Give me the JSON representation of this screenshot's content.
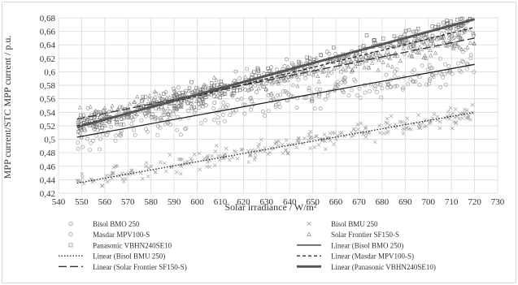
{
  "chart_data": {
    "type": "scatter",
    "xlabel": "Solar irradiance / W/m²",
    "ylabel": "MPP current/STC MPP current / p.u.",
    "xlim": [
      540,
      730
    ],
    "ylim": [
      0.42,
      0.68
    ],
    "xticks": [
      "540",
      "550",
      "560",
      "570",
      "580",
      "590",
      "600",
      "610",
      "620",
      "630",
      "640",
      "650",
      "660",
      "670",
      "680",
      "690",
      "700",
      "710",
      "720",
      "730"
    ],
    "yticks": [
      "0,42",
      "0,44",
      "0,46",
      "0,48",
      "0,5",
      "0,52",
      "0,54",
      "0,56",
      "0,58",
      "0,6",
      "0,62",
      "0,64",
      "0,66",
      "0,68"
    ],
    "grid": "on",
    "legend_position": "bottom",
    "series": [
      {
        "name": "Bisol BMO 250",
        "marker": "circle",
        "color": "#8c8c8c",
        "x_range": [
          548,
          720
        ],
        "line": [
          0.503,
          0.611
        ],
        "spread": 0.03
      },
      {
        "name": "Bisol BMU 250",
        "marker": "x",
        "color": "#9a9a9a",
        "x_range": [
          548,
          720
        ],
        "line": [
          0.435,
          0.54
        ],
        "spread": 0.02
      },
      {
        "name": "Masdar MPV100-S",
        "marker": "circle",
        "color": "#7a7a7a",
        "x_range": [
          548,
          720
        ],
        "line": [
          0.52,
          0.666
        ],
        "spread": 0.025
      },
      {
        "name": "Solar Frontier SF150-S",
        "marker": "triangle",
        "color": "#8a8a8a",
        "x_range": [
          548,
          720
        ],
        "line": [
          0.53,
          0.65
        ],
        "spread": 0.025
      },
      {
        "name": "Panasonic VBHN240SE10",
        "marker": "square",
        "color": "#6f6f6f",
        "x_range": [
          548,
          720
        ],
        "line": [
          0.518,
          0.678
        ],
        "spread": 0.02
      }
    ],
    "trendlines": [
      {
        "name": "Linear (Bisol BMU 250)",
        "style": "dotted",
        "x": [
          548,
          720
        ],
        "y": [
          0.435,
          0.54
        ]
      },
      {
        "name": "Linear (Bisol BMO 250)",
        "style": "solid",
        "x": [
          548,
          720
        ],
        "y": [
          0.503,
          0.611
        ]
      },
      {
        "name": "Linear (Masdar MPV100-S)",
        "style": "dashed-short",
        "x": [
          548,
          720
        ],
        "y": [
          0.52,
          0.666
        ]
      },
      {
        "name": "Linear (Solar Frontier SF150-S)",
        "style": "dashed-long",
        "x": [
          548,
          720
        ],
        "y": [
          0.53,
          0.65
        ]
      },
      {
        "name": "Linear (Panasonic VBHN240SE10)",
        "style": "thick",
        "x": [
          548,
          720
        ],
        "y": [
          0.518,
          0.678
        ]
      }
    ],
    "legend": [
      {
        "label": "Bisol BMO 250",
        "symbol": "circle"
      },
      {
        "label": "Bisol BMU 250",
        "symbol": "x"
      },
      {
        "label": "Masdar MPV100-S",
        "symbol": "circle"
      },
      {
        "label": "Solar Frontier SF150-S",
        "symbol": "triangle"
      },
      {
        "label": "Panasonic VBHN240SE10",
        "symbol": "square"
      },
      {
        "label": "Linear (Bisol BMO 250)",
        "symbol": "solid"
      },
      {
        "label": "Linear (Bisol BMU 250)",
        "symbol": "dotted"
      },
      {
        "label": "Linear (Masdar MPV100-S)",
        "symbol": "dashed-short"
      },
      {
        "label": "Linear (Solar Frontier SF150-S)",
        "symbol": "dashed-long"
      },
      {
        "label": "Linear (Panasonic VBHN240SE10)",
        "symbol": "thick"
      }
    ]
  }
}
